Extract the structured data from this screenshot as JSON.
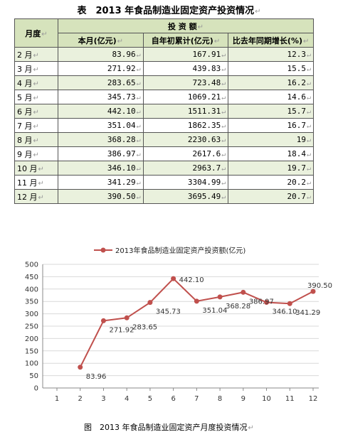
{
  "table": {
    "title": "表　2013 年食品制造业固定资产投资情况",
    "header_month": "月度",
    "header_group": "投 资 额",
    "header_cols": [
      "本月(亿元)",
      "自年初累计(亿元)",
      "比去年同期增长(%)"
    ],
    "rows": [
      {
        "month": "2 月",
        "monthly": "83.96",
        "cumulative": "167.91",
        "growth": "12.3"
      },
      {
        "month": "3 月",
        "monthly": "271.92",
        "cumulative": "439.83",
        "growth": "15.5"
      },
      {
        "month": "4 月",
        "monthly": "283.65",
        "cumulative": "723.48",
        "growth": "16.2"
      },
      {
        "month": "5 月",
        "monthly": "345.73",
        "cumulative": "1069.21",
        "growth": "14.6"
      },
      {
        "month": "6 月",
        "monthly": "442.10",
        "cumulative": "1511.31",
        "growth": "15.7"
      },
      {
        "month": "7 月",
        "monthly": "351.04",
        "cumulative": "1862.35",
        "growth": "16.7"
      },
      {
        "month": "8 月",
        "monthly": "368.28",
        "cumulative": "2230.63",
        "growth": "19"
      },
      {
        "month": "9 月",
        "monthly": "386.97",
        "cumulative": "2617.6",
        "growth": "18.4"
      },
      {
        "month": "10 月",
        "monthly": "346.10",
        "cumulative": "2963.7",
        "growth": "19.7"
      },
      {
        "month": "11 月",
        "monthly": "341.29",
        "cumulative": "3304.99",
        "growth": "20.2"
      },
      {
        "month": "12 月",
        "monthly": "390.50",
        "cumulative": "3695.49",
        "growth": "20.7"
      }
    ]
  },
  "chart_data": {
    "type": "line",
    "title": "",
    "x": [
      2,
      3,
      4,
      5,
      6,
      7,
      8,
      9,
      10,
      11,
      12
    ],
    "xticks": [
      1,
      2,
      3,
      4,
      5,
      6,
      7,
      8,
      9,
      10,
      11,
      12
    ],
    "xlim": [
      1,
      12
    ],
    "ylim": [
      0,
      500
    ],
    "yticks": [
      0,
      50,
      100,
      150,
      200,
      250,
      300,
      350,
      400,
      450,
      500
    ],
    "series": [
      {
        "name": "2013年食品制造业固定资产投资额(亿元)",
        "values": [
          83.96,
          271.92,
          283.65,
          345.73,
          442.1,
          351.04,
          368.28,
          386.97,
          346.1,
          341.29,
          390.5
        ],
        "labels": [
          "83.96",
          "271.92",
          "283.65",
          "345.73",
          "442.10",
          "351.04",
          "368.28",
          "386.97",
          "346.10",
          "341.29",
          "390.50"
        ],
        "color": "#c0504d"
      }
    ],
    "grid": true,
    "legend": "top"
  },
  "caption": "图　2013 年食品制造业固定资产月度投资情况"
}
